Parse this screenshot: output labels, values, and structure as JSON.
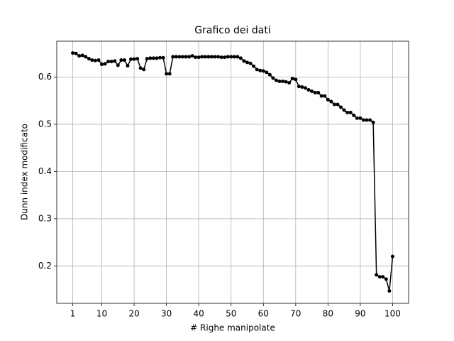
{
  "chart_data": {
    "type": "line",
    "title": "Grafico dei dati",
    "x_label": "# Righe manipolate",
    "y_label": "Dunn index modificato",
    "x": [
      1,
      2,
      3,
      4,
      5,
      6,
      7,
      8,
      9,
      10,
      11,
      12,
      13,
      14,
      15,
      16,
      17,
      18,
      19,
      20,
      21,
      22,
      23,
      24,
      25,
      26,
      27,
      28,
      29,
      30,
      31,
      32,
      33,
      34,
      35,
      36,
      37,
      38,
      39,
      40,
      41,
      42,
      43,
      44,
      45,
      46,
      47,
      48,
      49,
      50,
      51,
      52,
      53,
      54,
      55,
      56,
      57,
      58,
      59,
      60,
      61,
      62,
      63,
      64,
      65,
      66,
      67,
      68,
      69,
      70,
      71,
      72,
      73,
      74,
      75,
      76,
      77,
      78,
      79,
      80,
      81,
      82,
      83,
      84,
      85,
      86,
      87,
      88,
      89,
      90,
      91,
      92,
      93,
      94,
      95,
      96,
      97,
      98,
      99,
      100
    ],
    "series": [
      {
        "color": "#000000",
        "values": [
          0.651,
          0.65,
          0.645,
          0.646,
          0.643,
          0.639,
          0.636,
          0.635,
          0.636,
          0.627,
          0.628,
          0.633,
          0.633,
          0.634,
          0.625,
          0.636,
          0.636,
          0.624,
          0.638,
          0.638,
          0.639,
          0.619,
          0.616,
          0.639,
          0.64,
          0.64,
          0.64,
          0.641,
          0.641,
          0.607,
          0.607,
          0.643,
          0.643,
          0.643,
          0.643,
          0.643,
          0.643,
          0.645,
          0.642,
          0.642,
          0.643,
          0.643,
          0.643,
          0.643,
          0.643,
          0.643,
          0.642,
          0.642,
          0.643,
          0.643,
          0.643,
          0.643,
          0.64,
          0.634,
          0.631,
          0.629,
          0.623,
          0.616,
          0.614,
          0.613,
          0.61,
          0.605,
          0.598,
          0.593,
          0.591,
          0.591,
          0.59,
          0.588,
          0.597,
          0.595,
          0.58,
          0.579,
          0.577,
          0.573,
          0.57,
          0.567,
          0.567,
          0.56,
          0.56,
          0.552,
          0.548,
          0.542,
          0.542,
          0.536,
          0.53,
          0.525,
          0.525,
          0.519,
          0.513,
          0.513,
          0.509,
          0.509,
          0.509,
          0.504,
          0.181,
          0.177,
          0.177,
          0.172,
          0.147,
          0.22
        ]
      }
    ],
    "xlim": [
      -3.95,
      104.95
    ],
    "ylim": [
      0.1207,
      0.676
    ],
    "xticks": [
      1,
      10,
      20,
      30,
      40,
      50,
      60,
      70,
      80,
      90,
      100
    ],
    "yticks": [
      0.2,
      0.3,
      0.4,
      0.5,
      0.6
    ],
    "grid": true
  }
}
